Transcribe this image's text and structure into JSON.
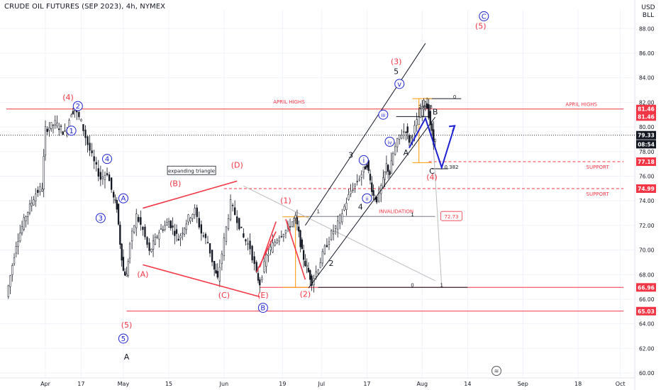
{
  "header": {
    "title": "CRUDE OIL FUTURES (SEP 2023), 4h, NYMEX",
    "currency": "USD",
    "unit": "BLL"
  },
  "colors": {
    "red": "#f23645",
    "blue": "#1e22d2",
    "orange": "#ff9800",
    "black": "#131722",
    "grid": "#f0f3fa",
    "gray": "#9e9e9e"
  },
  "chart_data": {
    "type": "candlestick",
    "ylim": [
      59.6,
      90.0
    ],
    "y_ticks": [
      60,
      62,
      64,
      66,
      68,
      70,
      72,
      74,
      76,
      78,
      80,
      82,
      84,
      86,
      88
    ],
    "x_ticks": [
      {
        "label": "Apr",
        "t": 0
      },
      {
        "label": "17",
        "t": 11
      },
      {
        "label": "May",
        "t": 24
      },
      {
        "label": "15",
        "t": 38
      },
      {
        "label": "Jun",
        "t": 55
      },
      {
        "label": "19",
        "t": 73
      },
      {
        "label": "Jul",
        "t": 85
      },
      {
        "label": "17",
        "t": 99
      },
      {
        "label": "Aug",
        "t": 116
      },
      {
        "label": "14",
        "t": 130
      },
      {
        "label": "Sep",
        "t": 147
      },
      {
        "label": "18",
        "t": 164
      },
      {
        "label": "Oct",
        "t": 177
      }
    ],
    "price_path": [
      {
        "t": -12,
        "y": 66.2
      },
      {
        "t": -9,
        "y": 70.5
      },
      {
        "t": -6,
        "y": 72.8
      },
      {
        "t": -3,
        "y": 74.6
      },
      {
        "t": -1,
        "y": 75.1
      },
      {
        "t": 0,
        "y": 79.8
      },
      {
        "t": 3,
        "y": 80.3
      },
      {
        "t": 6,
        "y": 79.5
      },
      {
        "t": 8,
        "y": 81.2
      },
      {
        "t": 9,
        "y": 81.4
      },
      {
        "t": 11,
        "y": 80.4
      },
      {
        "t": 13,
        "y": 78.6
      },
      {
        "t": 15,
        "y": 77.1
      },
      {
        "t": 17,
        "y": 75.8
      },
      {
        "t": 19,
        "y": 76.3
      },
      {
        "t": 21,
        "y": 74.2
      },
      {
        "t": 22,
        "y": 73.5
      },
      {
        "t": 23,
        "y": 70.6
      },
      {
        "t": 24,
        "y": 68.3
      },
      {
        "t": 25,
        "y": 67.9
      },
      {
        "t": 26,
        "y": 70.5
      },
      {
        "t": 28,
        "y": 72.8
      },
      {
        "t": 30,
        "y": 71.6
      },
      {
        "t": 32,
        "y": 69.8
      },
      {
        "t": 35,
        "y": 71.5
      },
      {
        "t": 38,
        "y": 72.3
      },
      {
        "t": 41,
        "y": 70.9
      },
      {
        "t": 44,
        "y": 72.6
      },
      {
        "t": 46,
        "y": 73.2
      },
      {
        "t": 48,
        "y": 71.4
      },
      {
        "t": 50,
        "y": 70.6
      },
      {
        "t": 52,
        "y": 68.4
      },
      {
        "t": 53,
        "y": 67.6
      },
      {
        "t": 55,
        "y": 70.8
      },
      {
        "t": 57,
        "y": 73.8
      },
      {
        "t": 59,
        "y": 72.5
      },
      {
        "t": 61,
        "y": 71.0
      },
      {
        "t": 63,
        "y": 70.2
      },
      {
        "t": 65,
        "y": 68.0
      },
      {
        "t": 66,
        "y": 67.3
      },
      {
        "t": 68,
        "y": 69.5
      },
      {
        "t": 70,
        "y": 70.4
      },
      {
        "t": 72,
        "y": 71.2
      },
      {
        "t": 74,
        "y": 71.6
      },
      {
        "t": 76,
        "y": 72.3
      },
      {
        "t": 77,
        "y": 72.6
      },
      {
        "t": 78,
        "y": 71.3
      },
      {
        "t": 79,
        "y": 69.8
      },
      {
        "t": 80,
        "y": 68.9
      },
      {
        "t": 81,
        "y": 68.2
      },
      {
        "t": 82,
        "y": 67.4
      },
      {
        "t": 84,
        "y": 68.6
      },
      {
        "t": 86,
        "y": 70.1
      },
      {
        "t": 88,
        "y": 71.3
      },
      {
        "t": 90,
        "y": 72.1
      },
      {
        "t": 92,
        "y": 73.5
      },
      {
        "t": 94,
        "y": 74.8
      },
      {
        "t": 96,
        "y": 75.6
      },
      {
        "t": 98,
        "y": 76.5
      },
      {
        "t": 99,
        "y": 77.0
      },
      {
        "t": 100,
        "y": 75.6
      },
      {
        "t": 101,
        "y": 74.4
      },
      {
        "t": 102,
        "y": 74.1
      },
      {
        "t": 104,
        "y": 75.6
      },
      {
        "t": 105,
        "y": 76.9
      },
      {
        "t": 106,
        "y": 76.2
      },
      {
        "t": 107,
        "y": 77.8
      },
      {
        "t": 109,
        "y": 79.3
      },
      {
        "t": 111,
        "y": 79.8
      },
      {
        "t": 112,
        "y": 78.9
      },
      {
        "t": 113,
        "y": 79.5
      },
      {
        "t": 115,
        "y": 80.8
      },
      {
        "t": 116,
        "y": 81.6
      },
      {
        "t": 117,
        "y": 82.2
      },
      {
        "t": 118,
        "y": 81.0
      },
      {
        "t": 119,
        "y": 79.5
      },
      {
        "t": 119.5,
        "y": 78.6
      },
      {
        "t": 120,
        "y": 79.3
      }
    ],
    "price_line": 79.33,
    "price_scale_labels": [
      {
        "text": "81.46",
        "y": 81.46,
        "color": "#f23645"
      },
      {
        "text": "81.46",
        "y": 80.85,
        "color": "#f23645"
      },
      {
        "text": "79.33",
        "y": 79.33,
        "color": "#131722"
      },
      {
        "text": "08:54",
        "y": 78.6,
        "color": "#131722"
      },
      {
        "text": "77.18",
        "y": 77.18,
        "color": "#f23645"
      },
      {
        "text": "74.99",
        "y": 74.99,
        "color": "#f23645"
      },
      {
        "text": "66.96",
        "y": 66.96,
        "color": "#f23645"
      },
      {
        "text": "65.03",
        "y": 65.03,
        "color": "#f23645"
      }
    ],
    "hlines": [
      {
        "y": 81.46,
        "t1": -12,
        "t2": 178,
        "color": "#f23645",
        "dash": false
      },
      {
        "y": 77.18,
        "t1": 118,
        "t2": 178,
        "color": "#f23645",
        "dash": true
      },
      {
        "y": 74.99,
        "t1": 55,
        "t2": 178,
        "color": "#f23645",
        "dash": true
      },
      {
        "y": 66.96,
        "t1": 66,
        "t2": 178,
        "color": "#f23645",
        "dash": false
      },
      {
        "y": 65.03,
        "t1": 25,
        "t2": 178,
        "color": "#f23645",
        "dash": false
      },
      {
        "y": 72.73,
        "t1": 77,
        "t2": 120,
        "color": "#787b86",
        "dash": false
      },
      {
        "y": 82.3,
        "t1": 117,
        "t2": 128,
        "color": "#131722",
        "dash": false
      },
      {
        "y": 66.96,
        "t1": 84,
        "t2": 130,
        "color": "#131722",
        "dash": false
      }
    ],
    "text_labels": [
      {
        "text": "APRIL HIGHS",
        "t": 75,
        "y": 81.9,
        "size": 7,
        "color": "#f23645",
        "bold": false
      },
      {
        "text": "APRIL HIGHS",
        "t": 165,
        "y": 81.7,
        "size": 7,
        "color": "#f23645",
        "bold": false
      },
      {
        "text": "SUPPORT",
        "t": 170,
        "y": 76.6,
        "size": 7,
        "color": "#f23645",
        "bold": false
      },
      {
        "text": "SUPPORT",
        "t": 170,
        "y": 74.4,
        "size": 7,
        "color": "#f23645",
        "bold": false
      },
      {
        "text": "INVALIDATION",
        "t": 108,
        "y": 73.0,
        "size": 7,
        "color": "#f23645",
        "bold": false
      },
      {
        "text": "2.618",
        "t": 117,
        "y": 81.5,
        "size": 7,
        "color": "#131722",
        "bold": false
      },
      {
        "text": "0.382",
        "t": 125,
        "y": 76.6,
        "size": 7,
        "color": "#131722",
        "bold": false
      },
      {
        "text": "0",
        "t": 126,
        "y": 82.3,
        "size": 7,
        "color": "#131722",
        "bold": false
      },
      {
        "text": "0",
        "t": 113,
        "y": 67.0,
        "size": 7,
        "color": "#131722",
        "bold": false
      },
      {
        "text": "1",
        "t": 122,
        "y": 67.0,
        "size": 7,
        "color": "#131722",
        "bold": false
      },
      {
        "text": "1",
        "t": 84,
        "y": 73.0,
        "size": 7,
        "color": "#131722",
        "bold": false
      },
      {
        "text": "1",
        "t": 113,
        "y": 72.75,
        "size": 7,
        "color": "#131722",
        "bold": false
      },
      {
        "text": "(4)",
        "t": 7,
        "y": 82.2,
        "size": 11,
        "color": "#f23645",
        "bold": false
      },
      {
        "text": "(B)",
        "t": 40,
        "y": 75.2,
        "size": 11,
        "color": "#f23645",
        "bold": false
      },
      {
        "text": "(D)",
        "t": 59,
        "y": 76.7,
        "size": 11,
        "color": "#f23645",
        "bold": false
      },
      {
        "text": "(A)",
        "t": 30,
        "y": 67.8,
        "size": 11,
        "color": "#f23645",
        "bold": false
      },
      {
        "text": "(C)",
        "t": 55,
        "y": 66.1,
        "size": 11,
        "color": "#f23645",
        "bold": false
      },
      {
        "text": "(E)",
        "t": 67,
        "y": 66.1,
        "size": 11,
        "color": "#f23645",
        "bold": false
      },
      {
        "text": "(1)",
        "t": 74,
        "y": 73.8,
        "size": 11,
        "color": "#f23645",
        "bold": false
      },
      {
        "text": "(2)",
        "t": 80,
        "y": 66.2,
        "size": 11,
        "color": "#f23645",
        "bold": false
      },
      {
        "text": "(3)",
        "t": 108,
        "y": 85.1,
        "size": 11,
        "color": "#f23645",
        "bold": false
      },
      {
        "text": "(4)",
        "t": 119,
        "y": 75.7,
        "size": 11,
        "color": "#f23645",
        "bold": false
      },
      {
        "text": "(5)",
        "t": 25,
        "y": 63.7,
        "size": 11,
        "color": "#f23645",
        "bold": false
      },
      {
        "text": "(5)",
        "t": 134,
        "y": 88.0,
        "size": 11,
        "color": "#f23645",
        "bold": false
      },
      {
        "text": "A",
        "t": 25,
        "y": 61.1,
        "size": 11,
        "color": "#131722",
        "bold": false
      },
      {
        "text": "5",
        "t": 108,
        "y": 84.3,
        "size": 11,
        "color": "#131722",
        "bold": false
      },
      {
        "text": "3",
        "t": 94,
        "y": 77.5,
        "size": 11,
        "color": "#131722",
        "bold": false
      },
      {
        "text": "4",
        "t": 97,
        "y": 73.3,
        "size": 11,
        "color": "#131722",
        "bold": false
      },
      {
        "text": "2",
        "t": 88,
        "y": 68.7,
        "size": 11,
        "color": "#131722",
        "bold": false
      },
      {
        "text": "A",
        "t": 111,
        "y": 77.7,
        "size": 11,
        "color": "#131722",
        "bold": false
      },
      {
        "text": "B",
        "t": 120,
        "y": 81.0,
        "size": 11,
        "color": "#131722",
        "bold": false
      },
      {
        "text": "C",
        "t": 119,
        "y": 76.2,
        "size": 11,
        "color": "#131722",
        "bold": false
      }
    ],
    "circle_labels": [
      {
        "text": "2",
        "t": 10,
        "y": 81.7
      },
      {
        "text": "1",
        "t": 8,
        "y": 79.7
      },
      {
        "text": "4",
        "t": 19,
        "y": 77.4
      },
      {
        "text": "3",
        "t": 17,
        "y": 72.6
      },
      {
        "text": "A",
        "t": 24,
        "y": 74.2
      },
      {
        "text": "5",
        "t": 24,
        "y": 62.8
      },
      {
        "text": "B",
        "t": 67,
        "y": 65.3
      },
      {
        "text": "C",
        "t": 135,
        "y": 89.0
      },
      {
        "text": "v",
        "t": 109,
        "y": 83.5
      },
      {
        "text": "iii",
        "t": 104,
        "y": 81.0
      },
      {
        "text": "iv",
        "t": 106,
        "y": 78.8
      },
      {
        "text": "i",
        "t": 98,
        "y": 77.3
      },
      {
        "text": "ii",
        "t": 99,
        "y": 74.2
      }
    ],
    "annotation_box": {
      "text": "expanding triangle",
      "t": 45,
      "y": 76.3
    },
    "invalidation_box": {
      "text": "72.73",
      "t": 125,
      "y": 72.73
    }
  }
}
